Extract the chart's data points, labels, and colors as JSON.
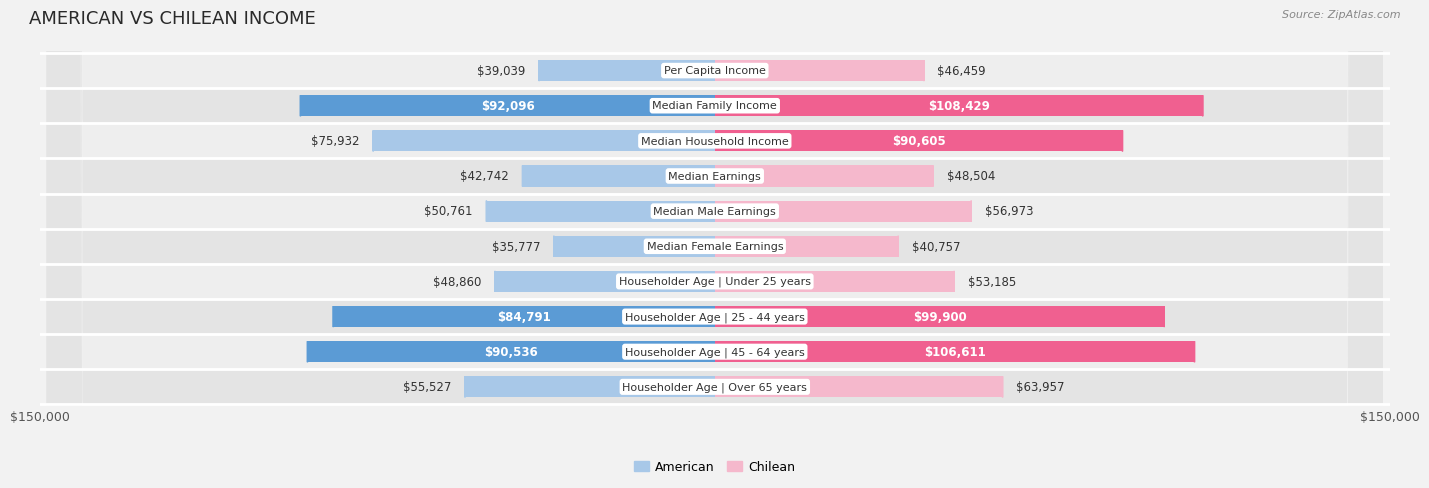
{
  "title": "AMERICAN VS CHILEAN INCOME",
  "source": "Source: ZipAtlas.com",
  "categories": [
    "Per Capita Income",
    "Median Family Income",
    "Median Household Income",
    "Median Earnings",
    "Median Male Earnings",
    "Median Female Earnings",
    "Householder Age | Under 25 years",
    "Householder Age | 25 - 44 years",
    "Householder Age | 45 - 64 years",
    "Householder Age | Over 65 years"
  ],
  "american_values": [
    39039,
    92096,
    75932,
    42742,
    50761,
    35777,
    48860,
    84791,
    90536,
    55527
  ],
  "chilean_values": [
    46459,
    108429,
    90605,
    48504,
    56973,
    40757,
    53185,
    99900,
    106611,
    63957
  ],
  "american_labels": [
    "$39,039",
    "$92,096",
    "$75,932",
    "$42,742",
    "$50,761",
    "$35,777",
    "$48,860",
    "$84,791",
    "$90,536",
    "$55,527"
  ],
  "chilean_labels": [
    "$46,459",
    "$108,429",
    "$90,605",
    "$48,504",
    "$56,973",
    "$40,757",
    "$53,185",
    "$99,900",
    "$106,611",
    "$63,957"
  ],
  "american_color_light": "#a8c8e8",
  "american_color_dark": "#5b9bd5",
  "chilean_color_light": "#f5b8cc",
  "chilean_color_dark": "#f06090",
  "american_dark_threshold": 80000,
  "chilean_dark_threshold": 80000,
  "axis_limit": 150000,
  "axis_label_left": "$150,000",
  "axis_label_right": "$150,000",
  "legend_american": "American",
  "legend_chilean": "Chilean",
  "background_color": "#f2f2f2",
  "row_bg_even": "#f0f0f0",
  "row_bg_odd": "#e8e8e8",
  "title_fontsize": 13,
  "source_fontsize": 8,
  "label_fontsize": 8.5,
  "cat_fontsize": 8,
  "bar_height": 0.6
}
